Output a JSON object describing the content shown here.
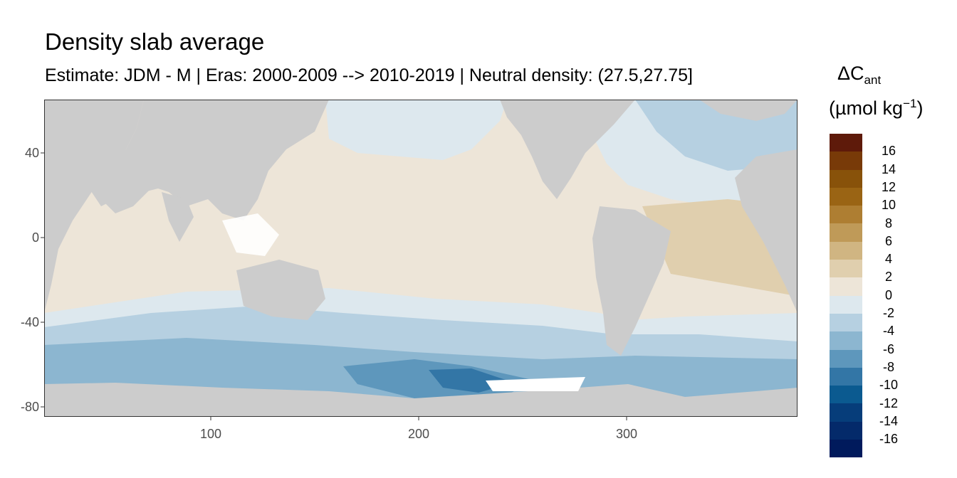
{
  "title": "Density slab average",
  "subtitle": "Estimate: JDM - M | Eras: 2000-2009 --> 2010-2019 | Neutral density: (27.5,27.75]",
  "map": {
    "land_color": "#cccccc",
    "nodata_color": "#ffffff",
    "x_axis": {
      "ticks": [
        "100",
        "200",
        "300"
      ],
      "range": [
        20,
        382
      ]
    },
    "y_axis": {
      "ticks": [
        "40",
        "0",
        "-40",
        "-80"
      ],
      "range": [
        -84,
        65
      ]
    }
  },
  "legend": {
    "title": "ΔC",
    "title_sub": "ant",
    "unit_prefix": "(µmol kg",
    "unit_sup": "−1",
    "unit_suffix": ")",
    "labels": [
      "16",
      "14",
      "12",
      "10",
      "8",
      "6",
      "4",
      "2",
      "0",
      "-2",
      "-4",
      "-6",
      "-8",
      "-10",
      "-12",
      "-14",
      "-16"
    ],
    "colors": [
      "#5e1a0a",
      "#783a08",
      "#88520a",
      "#9a6414",
      "#ae7e32",
      "#bf9a58",
      "#d0b582",
      "#e0cfae",
      "#ede5d8",
      "#dde8ee",
      "#b6d0e1",
      "#8cb6d0",
      "#5e97bc",
      "#3376a6",
      "#0b5a90",
      "#063d7a",
      "#042a6a",
      "#001a5c"
    ]
  }
}
